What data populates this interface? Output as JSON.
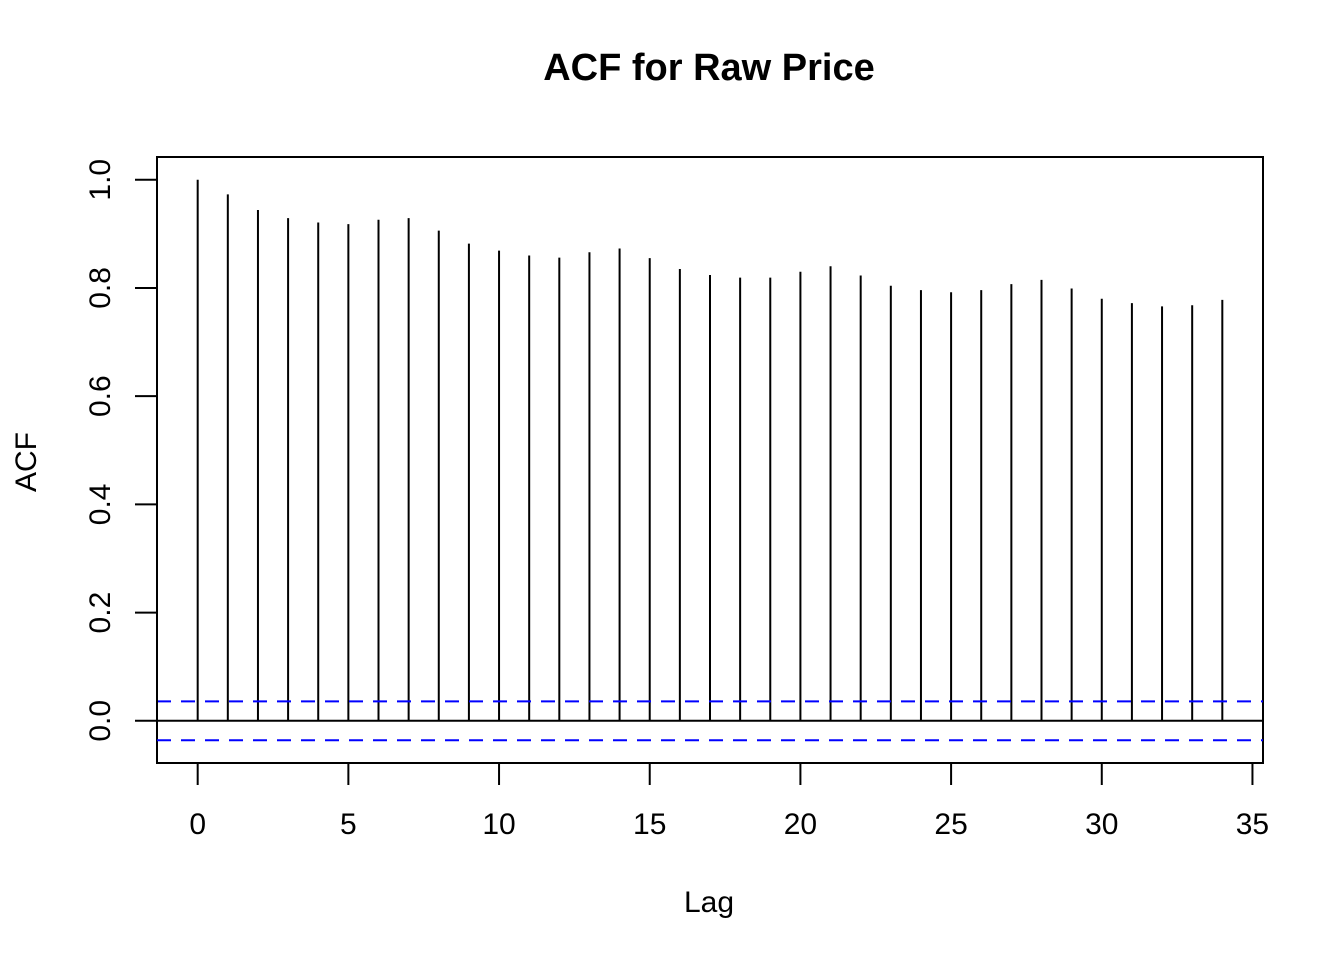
{
  "chart_data": {
    "type": "bar",
    "subtype": "acf-spike",
    "title": "ACF for Raw Price",
    "xlabel": "Lag",
    "ylabel": "ACF",
    "xlim": [
      -1.35,
      35.35
    ],
    "ylim": [
      -0.078,
      1.042
    ],
    "xticks": [
      0,
      5,
      10,
      15,
      20,
      25,
      30,
      35
    ],
    "xtick_labels": [
      "0",
      "5",
      "10",
      "15",
      "20",
      "25",
      "30",
      "35"
    ],
    "yticks": [
      0.0,
      0.2,
      0.4,
      0.6,
      0.8,
      1.0
    ],
    "ytick_labels": [
      "0.0",
      "0.2",
      "0.4",
      "0.6",
      "0.8",
      "1.0"
    ],
    "lags": [
      0,
      1,
      2,
      3,
      4,
      5,
      6,
      7,
      8,
      9,
      10,
      11,
      12,
      13,
      14,
      15,
      16,
      17,
      18,
      19,
      20,
      21,
      22,
      23,
      24,
      25,
      26,
      27,
      28,
      29,
      30,
      31,
      32,
      33,
      34
    ],
    "values": [
      1.0,
      0.973,
      0.944,
      0.929,
      0.921,
      0.918,
      0.926,
      0.929,
      0.906,
      0.882,
      0.869,
      0.86,
      0.856,
      0.866,
      0.873,
      0.855,
      0.835,
      0.824,
      0.819,
      0.819,
      0.83,
      0.84,
      0.823,
      0.804,
      0.796,
      0.792,
      0.796,
      0.807,
      0.815,
      0.799,
      0.78,
      0.772,
      0.766,
      0.768,
      0.778
    ],
    "confidence_bound": 0.036,
    "zero_line": 0,
    "colors": {
      "spike": "#000000",
      "zero_line": "#000000",
      "confidence": "#0000ff",
      "frame": "#000000"
    }
  }
}
